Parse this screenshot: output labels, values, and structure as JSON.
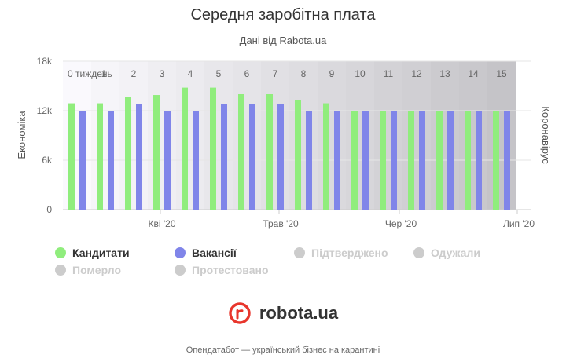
{
  "title": "Середня заробітна плата",
  "subtitle": "Дані від Rabota.ua",
  "colors": {
    "candidates": "#90ed7d",
    "vacancies": "#8085e9",
    "hidden": "#cccccc"
  },
  "legend": {
    "candidates": "Кандитати",
    "vacancies": "Вакансії",
    "confirmed": "Підтверджено",
    "recovered": "Одужали",
    "died": "Померло",
    "tested": "Протестовано"
  },
  "logo_text": "robota.ua",
  "footer": "Опендатабот — український бізнес на карантині",
  "chart_data": {
    "type": "bar",
    "ylabel": "Економіка",
    "y2label": "Коронавірус",
    "ylim": [
      0,
      18000
    ],
    "yticks": [
      "0",
      "6k",
      "12k",
      "18k"
    ],
    "xtick_labels": [
      "Кві '20",
      "Трав '20",
      "Чер '20",
      "Лип '20"
    ],
    "weeks": [
      "0 тиждень",
      "1",
      "2",
      "3",
      "4",
      "5",
      "6",
      "7",
      "8",
      "9",
      "10",
      "11",
      "12",
      "13",
      "14",
      "15"
    ],
    "series": [
      {
        "name": "Кандитати",
        "values": [
          12900,
          12900,
          13700,
          13900,
          14800,
          14800,
          14000,
          14000,
          13300,
          12900,
          12000,
          12000,
          12000,
          12000,
          12000,
          12000
        ]
      },
      {
        "name": "Вакансії",
        "values": [
          12000,
          12000,
          12800,
          12000,
          12000,
          12800,
          12800,
          12800,
          12000,
          12000,
          12000,
          12000,
          12000,
          12000,
          12000,
          12000
        ]
      }
    ]
  }
}
